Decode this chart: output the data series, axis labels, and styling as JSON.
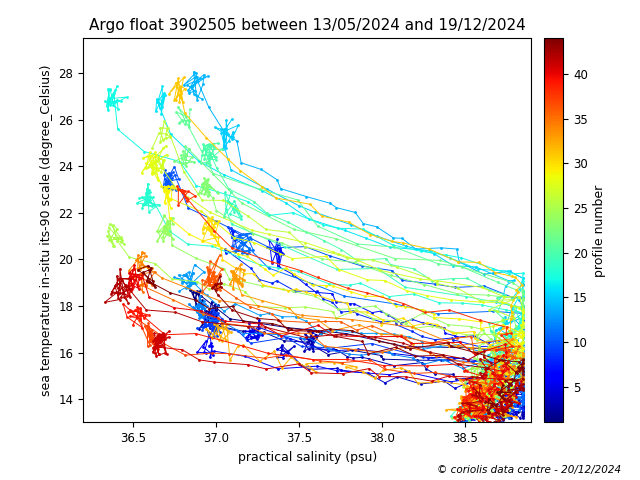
{
  "title": "Argo float 3902505 between 13/05/2024 and 19/12/2024",
  "xlabel": "practical salinity (psu)",
  "ylabel": "sea temperature in-situ its-90 scale (degree_Celsius)",
  "colorbar_label": "profile number",
  "copyright": "© coriolis data centre - 20/12/2024",
  "xlim": [
    36.2,
    38.9
  ],
  "ylim": [
    13.0,
    29.5
  ],
  "n_profiles": 44,
  "cmap": "jet",
  "vmin": 1,
  "vmax": 44,
  "colorbar_ticks": [
    5,
    10,
    15,
    20,
    25,
    30,
    35,
    40
  ],
  "title_fontsize": 11,
  "label_fontsize": 9,
  "colorbar_fontsize": 9,
  "copyright_fontsize": 7.5,
  "marker_size": 2.0,
  "line_width": 0.7,
  "xticks": [
    36.5,
    37.0,
    37.5,
    38.0,
    38.5
  ],
  "yticks": [
    14,
    16,
    18,
    20,
    22,
    24,
    26,
    28
  ]
}
